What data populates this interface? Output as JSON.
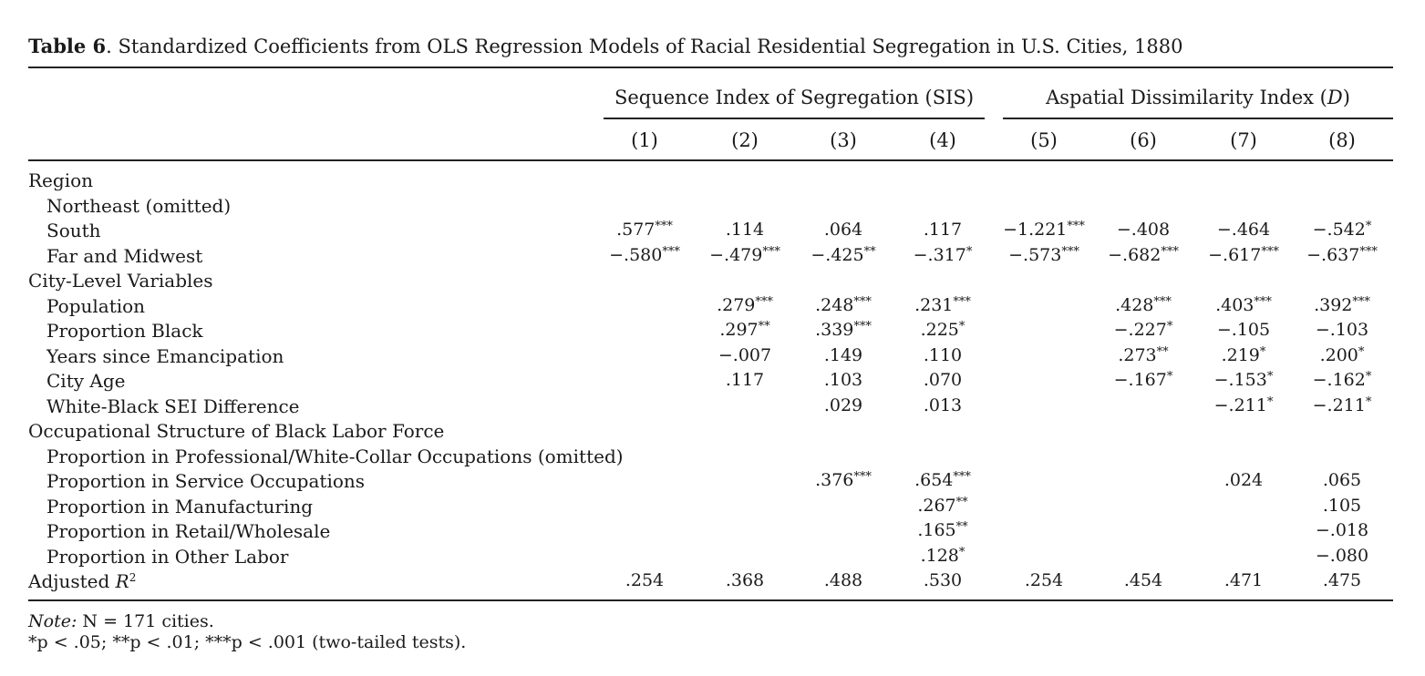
{
  "caption": {
    "label": "Table 6",
    "text": ". Standardized Coefficients from OLS Regression Models of Racial Residential Segregation in U.S. Cities, 1880"
  },
  "groups": {
    "sis": "Sequence Index of Segregation (SIS)",
    "d_prefix": "Aspatial Dissimilarity Index (",
    "d_symbol": "D",
    "d_suffix": ")"
  },
  "columns": [
    "(1)",
    "(2)",
    "(3)",
    "(4)",
    "(5)",
    "(6)",
    "(7)",
    "(8)"
  ],
  "rows": [
    {
      "label": "Region",
      "indent": false,
      "cells": [
        null,
        null,
        null,
        null,
        null,
        null,
        null,
        null
      ]
    },
    {
      "label": "Northeast (omitted)",
      "indent": true,
      "cells": [
        null,
        null,
        null,
        null,
        null,
        null,
        null,
        null
      ]
    },
    {
      "label": "South",
      "indent": true,
      "cells": [
        [
          ".577",
          "***"
        ],
        [
          ".114",
          ""
        ],
        [
          ".064",
          ""
        ],
        [
          ".117",
          ""
        ],
        [
          "−1.221",
          "***"
        ],
        [
          "−.408",
          ""
        ],
        [
          "−.464",
          ""
        ],
        [
          "−.542",
          "*"
        ]
      ]
    },
    {
      "label": "Far and Midwest",
      "indent": true,
      "cells": [
        [
          "−.580",
          "***"
        ],
        [
          "−.479",
          "***"
        ],
        [
          "−.425",
          "**"
        ],
        [
          "−.317",
          "*"
        ],
        [
          "−.573",
          "***"
        ],
        [
          "−.682",
          "***"
        ],
        [
          "−.617",
          "***"
        ],
        [
          "−.637",
          "***"
        ]
      ]
    },
    {
      "label": "City-Level Variables",
      "indent": false,
      "cells": [
        null,
        null,
        null,
        null,
        null,
        null,
        null,
        null
      ]
    },
    {
      "label": "Population",
      "indent": true,
      "cells": [
        null,
        [
          ".279",
          "***"
        ],
        [
          ".248",
          "***"
        ],
        [
          ".231",
          "***"
        ],
        null,
        [
          ".428",
          "***"
        ],
        [
          ".403",
          "***"
        ],
        [
          ".392",
          "***"
        ]
      ]
    },
    {
      "label": "Proportion Black",
      "indent": true,
      "cells": [
        null,
        [
          ".297",
          "**"
        ],
        [
          ".339",
          "***"
        ],
        [
          ".225",
          "*"
        ],
        null,
        [
          "−.227",
          "*"
        ],
        [
          "−.105",
          ""
        ],
        [
          "−.103",
          ""
        ]
      ]
    },
    {
      "label": "Years since Emancipation",
      "indent": true,
      "cells": [
        null,
        [
          "−.007",
          ""
        ],
        [
          ".149",
          ""
        ],
        [
          ".110",
          ""
        ],
        null,
        [
          ".273",
          "**"
        ],
        [
          ".219",
          "*"
        ],
        [
          ".200",
          "*"
        ]
      ]
    },
    {
      "label": "City Age",
      "indent": true,
      "cells": [
        null,
        [
          ".117",
          ""
        ],
        [
          ".103",
          ""
        ],
        [
          ".070",
          ""
        ],
        null,
        [
          "−.167",
          "*"
        ],
        [
          "−.153",
          "*"
        ],
        [
          "−.162",
          "*"
        ]
      ]
    },
    {
      "label": "White-Black SEI Difference",
      "indent": true,
      "cells": [
        null,
        null,
        [
          ".029",
          ""
        ],
        [
          ".013",
          ""
        ],
        null,
        null,
        [
          "−.211",
          "*"
        ],
        [
          "−.211",
          "*"
        ]
      ]
    },
    {
      "label": "Occupational Structure of Black Labor Force",
      "indent": false,
      "cells": [
        null,
        null,
        null,
        null,
        null,
        null,
        null,
        null
      ]
    },
    {
      "label": "Proportion in Professional/White-Collar Occupations (omitted)",
      "indent": true,
      "cells": [
        null,
        null,
        null,
        null,
        null,
        null,
        null,
        null
      ]
    },
    {
      "label": "Proportion in Service Occupations",
      "indent": true,
      "cells": [
        null,
        null,
        [
          ".376",
          "***"
        ],
        [
          ".654",
          "***"
        ],
        null,
        null,
        [
          ".024",
          ""
        ],
        [
          ".065",
          ""
        ]
      ]
    },
    {
      "label": "Proportion in Manufacturing",
      "indent": true,
      "cells": [
        null,
        null,
        null,
        [
          ".267",
          "**"
        ],
        null,
        null,
        null,
        [
          ".105",
          ""
        ]
      ]
    },
    {
      "label": "Proportion in Retail/Wholesale",
      "indent": true,
      "cells": [
        null,
        null,
        null,
        [
          ".165",
          "**"
        ],
        null,
        null,
        null,
        [
          "−.018",
          ""
        ]
      ]
    },
    {
      "label": "Proportion in Other Labor",
      "indent": true,
      "cells": [
        null,
        null,
        null,
        [
          ".128",
          "*"
        ],
        null,
        null,
        null,
        [
          "−.080",
          ""
        ]
      ]
    },
    {
      "label": "Adjusted R²",
      "indent": false,
      "cells": [
        [
          ".254",
          ""
        ],
        [
          ".368",
          ""
        ],
        [
          ".488",
          ""
        ],
        [
          ".530",
          ""
        ],
        [
          ".254",
          ""
        ],
        [
          ".454",
          ""
        ],
        [
          ".471",
          ""
        ],
        [
          ".475",
          ""
        ]
      ]
    }
  ],
  "notes": {
    "line1_prefix": "Note:",
    "line1_text": " N = 171 cities.",
    "line2_text": "*p < .05; **p < .01; ***p < .001 (two-tailed tests)."
  }
}
